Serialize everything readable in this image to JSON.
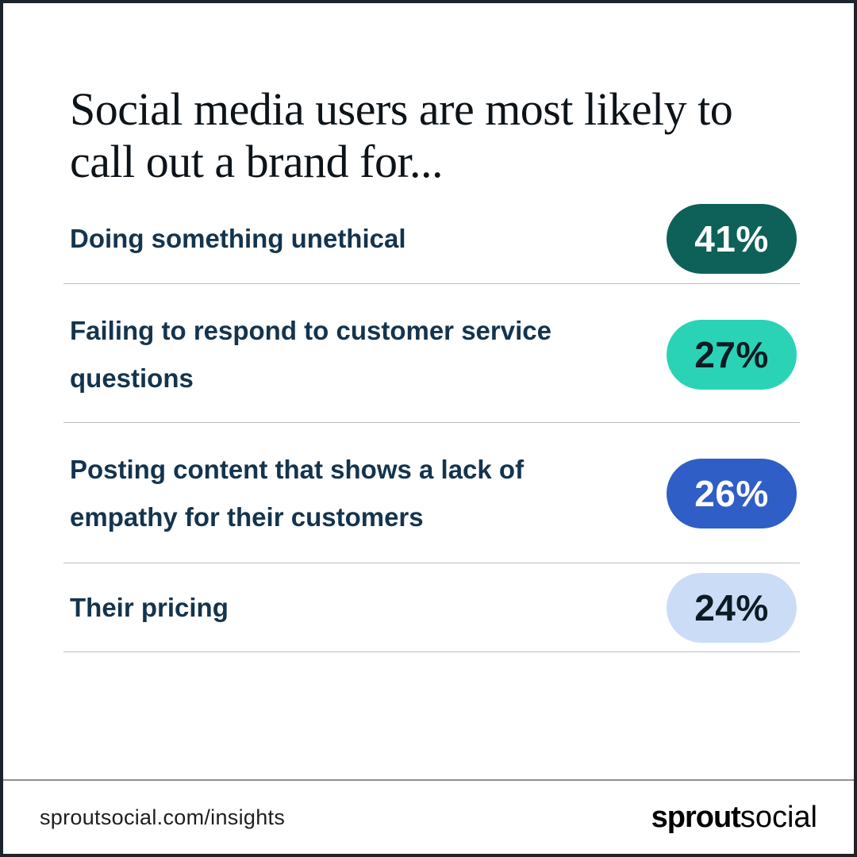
{
  "title": "Social media users are most likely to call out a brand for...",
  "rows": [
    {
      "label": "Doing something unethical",
      "value": "41%",
      "pill_bg": "#0e6158",
      "pill_text_color": "#ffffff"
    },
    {
      "label": "Failing to respond to customer service questions",
      "value": "27%",
      "pill_bg": "#2bd3b6",
      "pill_text_color": "#0d1b24"
    },
    {
      "label": "Posting content that shows a lack of empathy for their customers",
      "value": "26%",
      "pill_bg": "#2e5ec6",
      "pill_text_color": "#ffffff"
    },
    {
      "label": "Their pricing",
      "value": "24%",
      "pill_bg": "#cbddf6",
      "pill_text_color": "#0d1b24"
    }
  ],
  "footer": {
    "url": "sproutsocial.com/insights",
    "logo_bold": "sprout",
    "logo_light": "social"
  },
  "colors": {
    "canvas_border": "#1b242b",
    "title_text": "#0c1319",
    "label_text": "#14344e",
    "row_divider": "#bdbdbd",
    "footer_divider": "#8f8f8f",
    "pill_dark_teal": "#0e6158",
    "pill_bright_teal": "#2bd3b6",
    "pill_blue": "#2e5ec6",
    "pill_light_blue": "#cbddf6"
  },
  "chart_data": {
    "type": "bar",
    "title": "Social media users are most likely to call out a brand for...",
    "categories": [
      "Doing something unethical",
      "Failing to respond to customer service questions",
      "Posting content that shows a lack of empathy for their customers",
      "Their pricing"
    ],
    "values": [
      41,
      27,
      26,
      24
    ],
    "value_format": "percent",
    "xlabel": "",
    "ylabel": "",
    "legend": "none",
    "grid": false,
    "layout": "horizontal list with value pills, sorted descending"
  }
}
